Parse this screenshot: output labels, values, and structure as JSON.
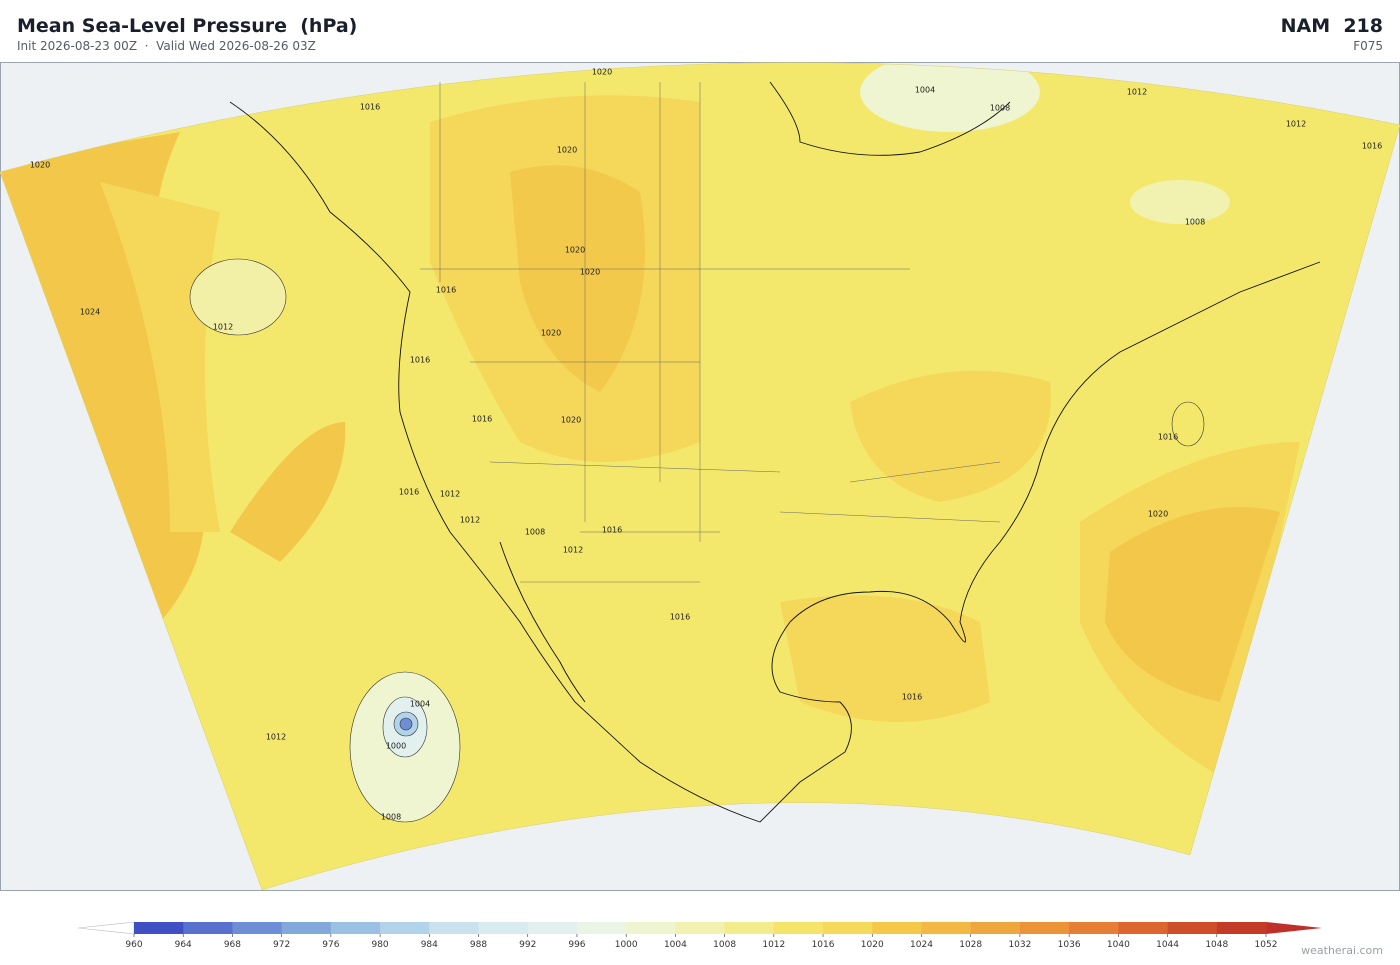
{
  "header": {
    "title": "Mean Sea-Level Pressure  (hPa)",
    "subtitle": "Init 2026-08-23 00Z  ·  Valid Wed 2026-08-26 03Z",
    "model": "NAM  218",
    "forecast_hour": "F075"
  },
  "map": {
    "contour_labels": [
      1020,
      1016,
      1020,
      1020,
      1020,
      1004,
      1008,
      1012,
      1012,
      1016,
      1020,
      1024,
      1012,
      1016,
      1016,
      1020,
      1016,
      1020,
      1012,
      1008,
      1012,
      1012,
      1016,
      1016,
      1008,
      1004,
      1000,
      1012,
      1008,
      1016,
      1016,
      1016,
      1020
    ]
  },
  "colorbar": {
    "ticks": [
      960,
      964,
      968,
      972,
      976,
      980,
      984,
      988,
      992,
      996,
      1000,
      1004,
      1008,
      1012,
      1016,
      1020,
      1024,
      1028,
      1032,
      1036,
      1040,
      1044,
      1048,
      1052
    ],
    "colors": [
      "#4050c4",
      "#5a70cf",
      "#6e8fd6",
      "#83a8dc",
      "#9cc0e3",
      "#b3d3ea",
      "#c9e2ee",
      "#d9ebee",
      "#e2f1ee",
      "#eaf5e6",
      "#eef5d0",
      "#f1f2b0",
      "#f3ec8c",
      "#f4e56a",
      "#f5d95a",
      "#f4c94a",
      "#f2b843",
      "#efa63e",
      "#ec933a",
      "#e67e35",
      "#dc6630",
      "#d04f2b",
      "#c33a27"
    ],
    "under_color": "#ffffff",
    "over_color": "#c0302a"
  },
  "watermark": "weatherai.com"
}
